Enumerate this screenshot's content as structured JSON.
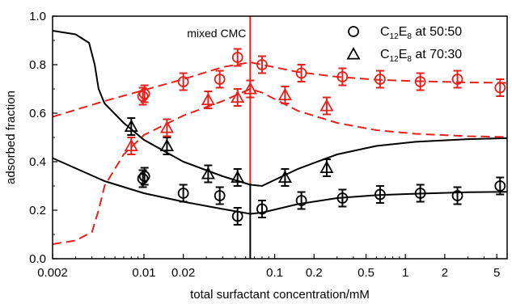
{
  "colors": {
    "black": "#000000",
    "red": "#e8201b"
  },
  "chart_data": {
    "type": "scatter",
    "xlabel": "total surfactant concentration/mM",
    "ylabel": "adsorbed fraction",
    "xscale": "log",
    "xlim": [
      0.002,
      6.0
    ],
    "ylim": [
      0.0,
      1.0
    ],
    "x_ticks": [
      {
        "value": 0.002,
        "label": "0.002"
      },
      {
        "value": 0.01,
        "label": "0.01"
      },
      {
        "value": 0.02,
        "label": "0.02"
      },
      {
        "value": 0.1,
        "label": "0.1"
      },
      {
        "value": 0.2,
        "label": "0.2"
      },
      {
        "value": 0.5,
        "label": "0.5"
      },
      {
        "value": 1,
        "label": "1"
      },
      {
        "value": 2,
        "label": "2"
      },
      {
        "value": 5,
        "label": "5"
      }
    ],
    "y_ticks": [
      {
        "value": 0.0,
        "label": "0.0"
      },
      {
        "value": 0.2,
        "label": "0.2"
      },
      {
        "value": 0.4,
        "label": "0.4"
      },
      {
        "value": 0.6,
        "label": "0.6"
      },
      {
        "value": 0.8,
        "label": "0.8"
      },
      {
        "value": 1.0,
        "label": "1.0"
      }
    ],
    "annotation": {
      "text": "mixed CMC",
      "x": 0.065
    },
    "legend": {
      "position": "top-right",
      "entries": [
        {
          "marker": "circle",
          "prefix": "C",
          "sub1": "12",
          "mid": "E",
          "sub2": "8",
          "suffix": " at 50:50"
        },
        {
          "marker": "triangle",
          "prefix": "C",
          "sub1": "12",
          "mid": "E",
          "sub2": "8",
          "suffix": " at 70:30"
        }
      ]
    },
    "marker_series": [
      {
        "marker": "circle",
        "color": "black",
        "err": 0.035,
        "points": [
          [
            0.0098,
            0.33
          ],
          [
            0.0101,
            0.34
          ],
          [
            0.02,
            0.27
          ],
          [
            0.038,
            0.26
          ],
          [
            0.052,
            0.175
          ],
          [
            0.08,
            0.205
          ],
          [
            0.16,
            0.24
          ],
          [
            0.33,
            0.25
          ],
          [
            0.64,
            0.265
          ],
          [
            1.3,
            0.27
          ],
          [
            2.5,
            0.26
          ],
          [
            5.3,
            0.3
          ]
        ]
      },
      {
        "marker": "triangle",
        "color": "black",
        "err": 0.035,
        "points": [
          [
            0.008,
            0.545
          ],
          [
            0.015,
            0.465
          ],
          [
            0.031,
            0.35
          ],
          [
            0.052,
            0.335
          ],
          [
            0.12,
            0.335
          ],
          [
            0.25,
            0.375
          ]
        ]
      },
      {
        "marker": "circle",
        "color": "red",
        "err": 0.035,
        "points": [
          [
            0.0098,
            0.67
          ],
          [
            0.0101,
            0.68
          ],
          [
            0.02,
            0.73
          ],
          [
            0.038,
            0.74
          ],
          [
            0.052,
            0.83
          ],
          [
            0.08,
            0.8
          ],
          [
            0.16,
            0.765
          ],
          [
            0.33,
            0.75
          ],
          [
            0.64,
            0.74
          ],
          [
            1.3,
            0.73
          ],
          [
            2.5,
            0.74
          ],
          [
            5.3,
            0.705
          ]
        ]
      },
      {
        "marker": "triangle",
        "color": "red",
        "err": 0.035,
        "points": [
          [
            0.008,
            0.465
          ],
          [
            0.015,
            0.54
          ],
          [
            0.031,
            0.655
          ],
          [
            0.052,
            0.665
          ],
          [
            0.065,
            0.7
          ],
          [
            0.12,
            0.675
          ],
          [
            0.25,
            0.63
          ]
        ]
      }
    ],
    "curves": [
      {
        "color": "black",
        "style": "solid",
        "points": [
          [
            0.002,
            0.94
          ],
          [
            0.003,
            0.925
          ],
          [
            0.0038,
            0.89
          ],
          [
            0.0042,
            0.8
          ],
          [
            0.0045,
            0.7
          ],
          [
            0.005,
            0.64
          ],
          [
            0.007,
            0.56
          ],
          [
            0.01,
            0.49
          ],
          [
            0.02,
            0.4
          ],
          [
            0.04,
            0.34
          ],
          [
            0.065,
            0.305
          ],
          [
            0.08,
            0.3
          ],
          [
            0.15,
            0.37
          ],
          [
            0.3,
            0.43
          ],
          [
            0.6,
            0.465
          ],
          [
            1.2,
            0.482
          ],
          [
            3,
            0.493
          ],
          [
            6,
            0.497
          ]
        ]
      },
      {
        "color": "black",
        "style": "solid",
        "points": [
          [
            0.002,
            0.415
          ],
          [
            0.005,
            0.32
          ],
          [
            0.01,
            0.27
          ],
          [
            0.02,
            0.235
          ],
          [
            0.04,
            0.205
          ],
          [
            0.065,
            0.185
          ],
          [
            0.08,
            0.19
          ],
          [
            0.15,
            0.225
          ],
          [
            0.3,
            0.25
          ],
          [
            0.6,
            0.262
          ],
          [
            1.2,
            0.268
          ],
          [
            3,
            0.274
          ],
          [
            6,
            0.276
          ]
        ]
      },
      {
        "color": "red",
        "style": "dashed",
        "points": [
          [
            0.002,
            0.585
          ],
          [
            0.005,
            0.65
          ],
          [
            0.01,
            0.695
          ],
          [
            0.02,
            0.74
          ],
          [
            0.04,
            0.79
          ],
          [
            0.065,
            0.81
          ],
          [
            0.08,
            0.8
          ],
          [
            0.15,
            0.77
          ],
          [
            0.3,
            0.75
          ],
          [
            0.6,
            0.738
          ],
          [
            1.2,
            0.732
          ],
          [
            3,
            0.727
          ],
          [
            6,
            0.725
          ]
        ]
      },
      {
        "color": "red",
        "style": "dashed",
        "points": [
          [
            0.002,
            0.06
          ],
          [
            0.003,
            0.075
          ],
          [
            0.004,
            0.11
          ],
          [
            0.0045,
            0.2
          ],
          [
            0.005,
            0.3
          ],
          [
            0.007,
            0.43
          ],
          [
            0.01,
            0.51
          ],
          [
            0.02,
            0.59
          ],
          [
            0.04,
            0.65
          ],
          [
            0.065,
            0.7
          ],
          [
            0.08,
            0.685
          ],
          [
            0.15,
            0.61
          ],
          [
            0.3,
            0.56
          ],
          [
            0.6,
            0.53
          ],
          [
            1.2,
            0.515
          ],
          [
            3,
            0.505
          ],
          [
            6,
            0.502
          ]
        ]
      }
    ],
    "cmc_lines": [
      {
        "color": "red",
        "x": 0.065,
        "y_range": [
          0.31,
          1.0
        ]
      },
      {
        "color": "black",
        "x": 0.065,
        "y_range": [
          0.0,
          0.31
        ]
      }
    ]
  }
}
